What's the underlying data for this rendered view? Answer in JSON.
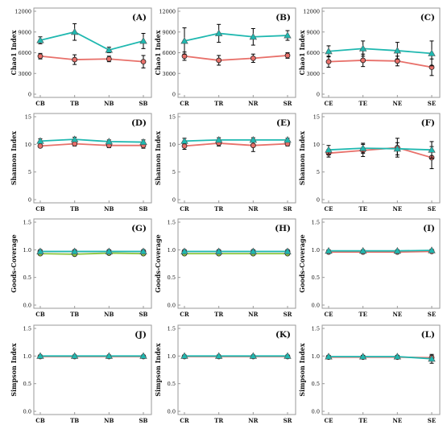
{
  "colors": {
    "red": "#e8706a",
    "teal": "#1fb8b0",
    "green": "#8cc63f",
    "blue": "#4a6fb5",
    "frame": "#9a9a9a",
    "error": "#000000"
  },
  "chart_data": [
    {
      "type": "line",
      "label": "(A)",
      "ylabel": "Chao1 Index",
      "categories": [
        "CB",
        "TB",
        "NB",
        "SB"
      ],
      "ylim": [
        0,
        12000
      ],
      "yticks": [
        "0",
        "3000",
        "6000",
        "9000",
        "12000"
      ],
      "series": [
        {
          "color": "red",
          "marker": "circle",
          "values": [
            5500,
            5000,
            5100,
            4700
          ],
          "err": [
            400,
            700,
            400,
            900
          ]
        },
        {
          "color": "teal",
          "marker": "triangle",
          "values": [
            7800,
            9000,
            6400,
            7700
          ],
          "err": [
            500,
            1200,
            400,
            1100
          ]
        }
      ]
    },
    {
      "type": "line",
      "label": "(B)",
      "ylabel": "Chao1 Index",
      "categories": [
        "CR",
        "TR",
        "NR",
        "SR"
      ],
      "ylim": [
        0,
        12000
      ],
      "yticks": [
        "0",
        "3000",
        "6000",
        "9000",
        "12000"
      ],
      "series": [
        {
          "color": "red",
          "marker": "circle",
          "values": [
            5500,
            4900,
            5200,
            5600
          ],
          "err": [
            600,
            700,
            600,
            400
          ]
        },
        {
          "color": "teal",
          "marker": "triangle",
          "values": [
            7700,
            8800,
            8300,
            8500
          ],
          "err": [
            1900,
            1300,
            1200,
            700
          ]
        }
      ]
    },
    {
      "type": "line",
      "label": "(C)",
      "ylabel": "Chao1 Index",
      "categories": [
        "CE",
        "TE",
        "NE",
        "SE"
      ],
      "ylim": [
        0,
        12000
      ],
      "yticks": [
        "0",
        "3000",
        "6000",
        "9000",
        "12000"
      ],
      "series": [
        {
          "color": "red",
          "marker": "circle",
          "values": [
            4700,
            4900,
            4800,
            3900
          ],
          "err": [
            800,
            900,
            700,
            1200
          ]
        },
        {
          "color": "teal",
          "marker": "triangle",
          "values": [
            6200,
            6600,
            6300,
            5900
          ],
          "err": [
            800,
            1100,
            1200,
            1800
          ]
        }
      ]
    },
    {
      "type": "line",
      "label": "(D)",
      "ylabel": "Shannon Index",
      "categories": [
        "CB",
        "TB",
        "NB",
        "SB"
      ],
      "ylim": [
        0,
        15
      ],
      "yticks": [
        "0",
        "5",
        "10",
        "15"
      ],
      "series": [
        {
          "color": "red",
          "marker": "circle",
          "values": [
            9.7,
            10.1,
            9.8,
            9.8
          ],
          "err": [
            0.3,
            0.4,
            0.4,
            0.5
          ]
        },
        {
          "color": "teal",
          "marker": "triangle",
          "values": [
            10.6,
            10.9,
            10.5,
            10.4
          ],
          "err": [
            0.4,
            0.4,
            0.3,
            0.4
          ]
        }
      ]
    },
    {
      "type": "line",
      "label": "(E)",
      "ylabel": "Shannon Index",
      "categories": [
        "CR",
        "TR",
        "NR",
        "SR"
      ],
      "ylim": [
        0,
        15
      ],
      "yticks": [
        "0",
        "5",
        "10",
        "15"
      ],
      "series": [
        {
          "color": "red",
          "marker": "circle",
          "values": [
            9.7,
            10.2,
            9.8,
            10.1
          ],
          "err": [
            0.6,
            0.5,
            1.1,
            0.4
          ]
        },
        {
          "color": "teal",
          "marker": "triangle",
          "values": [
            10.6,
            10.8,
            10.8,
            10.8
          ],
          "err": [
            0.5,
            0.4,
            0.4,
            0.3
          ]
        }
      ]
    },
    {
      "type": "line",
      "label": "(F)",
      "ylabel": "Shannon Index",
      "categories": [
        "CE",
        "TE",
        "NE",
        "SE"
      ],
      "ylim": [
        0,
        15
      ],
      "yticks": [
        "0",
        "5",
        "10",
        "15"
      ],
      "series": [
        {
          "color": "red",
          "marker": "circle",
          "values": [
            8.4,
            8.9,
            9.4,
            7.6
          ],
          "err": [
            0.7,
            1.1,
            1.7,
            2.0
          ]
        },
        {
          "color": "teal",
          "marker": "triangle",
          "values": [
            9.0,
            9.3,
            9.2,
            9.0
          ],
          "err": [
            0.8,
            0.9,
            1.1,
            1.5
          ]
        }
      ]
    },
    {
      "type": "line",
      "label": "(G)",
      "ylabel": "Goods-Coverage",
      "categories": [
        "CB",
        "TB",
        "NB",
        "SB"
      ],
      "ylim": [
        0,
        1.5
      ],
      "yticks": [
        "0.0",
        "0.5",
        "1.0",
        "1.5"
      ],
      "series": [
        {
          "color": "blue",
          "marker": "circle",
          "values": [
            0.97,
            0.97,
            0.97,
            0.97
          ],
          "err": [
            0.01,
            0.01,
            0.01,
            0.01
          ]
        },
        {
          "color": "green",
          "marker": "circle",
          "values": [
            0.93,
            0.92,
            0.94,
            0.93
          ],
          "err": [
            0.01,
            0.01,
            0.01,
            0.01
          ]
        },
        {
          "color": "teal",
          "marker": "triangle",
          "values": [
            0.97,
            0.97,
            0.97,
            0.97
          ],
          "err": [
            0.01,
            0.01,
            0.01,
            0.01
          ]
        }
      ]
    },
    {
      "type": "line",
      "label": "(H)",
      "ylabel": "Goods-Coverage",
      "categories": [
        "CR",
        "TR",
        "NR",
        "SR"
      ],
      "ylim": [
        0,
        1.5
      ],
      "yticks": [
        "0.0",
        "0.5",
        "1.0",
        "1.5"
      ],
      "series": [
        {
          "color": "blue",
          "marker": "circle",
          "values": [
            0.97,
            0.97,
            0.97,
            0.97
          ],
          "err": [
            0.01,
            0.01,
            0.01,
            0.01
          ]
        },
        {
          "color": "green",
          "marker": "circle",
          "values": [
            0.93,
            0.93,
            0.93,
            0.93
          ],
          "err": [
            0.01,
            0.01,
            0.01,
            0.01
          ]
        },
        {
          "color": "teal",
          "marker": "triangle",
          "values": [
            0.97,
            0.97,
            0.97,
            0.97
          ],
          "err": [
            0.01,
            0.01,
            0.01,
            0.01
          ]
        }
      ]
    },
    {
      "type": "line",
      "label": "(I)",
      "ylabel": "Goods-Coverage",
      "categories": [
        "CE",
        "TE",
        "NE",
        "SE"
      ],
      "ylim": [
        0,
        1.5
      ],
      "yticks": [
        "0.0",
        "0.5",
        "1.0",
        "1.5"
      ],
      "series": [
        {
          "color": "red",
          "marker": "circle",
          "values": [
            0.96,
            0.96,
            0.96,
            0.97
          ],
          "err": [
            0.01,
            0.01,
            0.01,
            0.01
          ]
        },
        {
          "color": "teal",
          "marker": "triangle",
          "values": [
            0.98,
            0.98,
            0.98,
            0.99
          ],
          "err": [
            0.02,
            0.02,
            0.02,
            0.02
          ]
        }
      ]
    },
    {
      "type": "line",
      "label": "(J)",
      "ylabel": "Simpson Index",
      "categories": [
        "CB",
        "TB",
        "NB",
        "SB"
      ],
      "ylim": [
        0,
        1.5
      ],
      "yticks": [
        "0.0",
        "0.5",
        "1.0",
        "1.5"
      ],
      "series": [
        {
          "color": "red",
          "marker": "circle",
          "values": [
            0.99,
            0.99,
            0.99,
            0.99
          ],
          "err": [
            0.01,
            0.01,
            0.01,
            0.01
          ]
        },
        {
          "color": "teal",
          "marker": "triangle",
          "values": [
            1.0,
            1.0,
            1.0,
            1.0
          ],
          "err": [
            0.01,
            0.01,
            0.01,
            0.01
          ]
        }
      ]
    },
    {
      "type": "line",
      "label": "(K)",
      "ylabel": "Simpson Index",
      "categories": [
        "CR",
        "TR",
        "NR",
        "SR"
      ],
      "ylim": [
        0,
        1.5
      ],
      "yticks": [
        "0.0",
        "0.5",
        "1.0",
        "1.5"
      ],
      "series": [
        {
          "color": "red",
          "marker": "circle",
          "values": [
            0.99,
            0.99,
            0.99,
            0.99
          ],
          "err": [
            0.01,
            0.01,
            0.01,
            0.01
          ]
        },
        {
          "color": "teal",
          "marker": "triangle",
          "values": [
            1.0,
            1.0,
            1.0,
            1.0
          ],
          "err": [
            0.01,
            0.01,
            0.01,
            0.01
          ]
        }
      ]
    },
    {
      "type": "line",
      "label": "(L)",
      "ylabel": "Simpson Index",
      "categories": [
        "CE",
        "TE",
        "NE",
        "SE"
      ],
      "ylim": [
        0,
        1.5
      ],
      "yticks": [
        "0.0",
        "0.5",
        "1.0",
        "1.5"
      ],
      "series": [
        {
          "color": "red",
          "marker": "circle",
          "values": [
            0.98,
            0.98,
            0.98,
            0.97
          ],
          "err": [
            0.02,
            0.03,
            0.02,
            0.04
          ]
        },
        {
          "color": "teal",
          "marker": "triangle",
          "values": [
            0.99,
            0.99,
            0.99,
            0.95
          ],
          "err": [
            0.02,
            0.02,
            0.02,
            0.08
          ]
        }
      ]
    }
  ]
}
